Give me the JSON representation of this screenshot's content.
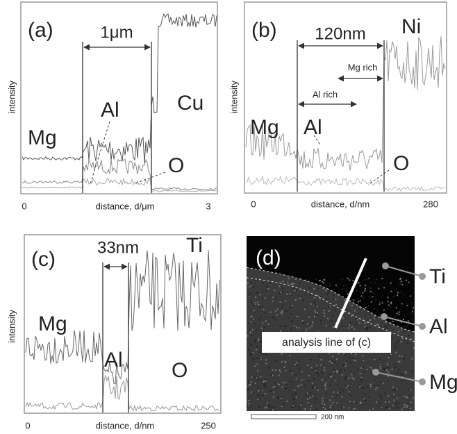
{
  "panels": [
    {
      "label": "(a)",
      "y_label": "intensity",
      "x_label": "distance, d/μm",
      "x_start": "0",
      "x_end": "3",
      "width_label": "1μm",
      "species": [
        "Cu",
        "Mg",
        "Al",
        "O"
      ]
    },
    {
      "label": "(b)",
      "y_label": "intensity",
      "x_label": "distance, d/nm",
      "x_start": "0",
      "x_end": "280",
      "width_label": "120nm",
      "species": [
        "Ni",
        "Mg",
        "Al",
        "O"
      ],
      "regions": [
        "Mg rich",
        "Al rich"
      ]
    },
    {
      "label": "(c)",
      "y_label": "intensity",
      "x_label": "distance, d/nm",
      "x_start": "0",
      "x_end": "250",
      "width_label": "33nm",
      "species": [
        "Ti",
        "Mg",
        "Al",
        "O"
      ]
    },
    {
      "label": "(d)",
      "line_label": "analysis line of (c)",
      "species": [
        "Ti",
        "Al",
        "Mg"
      ],
      "scale_label": "200 nm"
    }
  ]
}
